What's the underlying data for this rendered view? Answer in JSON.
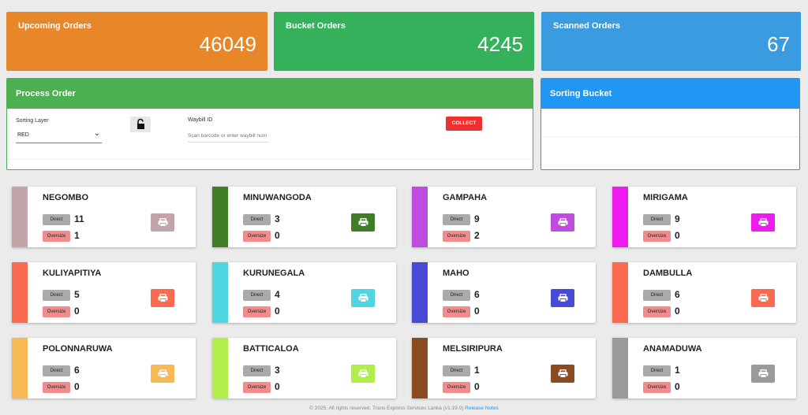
{
  "stats": {
    "upcoming": {
      "label": "Upcoming Orders",
      "value": "46049",
      "color": "#e8862a"
    },
    "bucket": {
      "label": "Bucket Orders",
      "value": "4245",
      "color": "#35b05b"
    },
    "scanned": {
      "label": "Scanned Orders",
      "value": "67",
      "color": "#3a9be0"
    }
  },
  "process_order": {
    "title": "Process Order",
    "sorting_layer_label": "Sorting Layer",
    "sorting_layer_value": "RED",
    "waybill_label": "Waybill ID",
    "waybill_placeholder": "Scan barcode or enter waybill num",
    "collect_label": "COLLECT",
    "header_color": "#4caf50",
    "collect_color": "#ee3030"
  },
  "sorting_bucket": {
    "title": "Sorting Bucket",
    "header_color": "#2196f3"
  },
  "direct_label": "Direct",
  "oversize_label": "Oversize",
  "buckets": [
    {
      "name": "NEGOMBO",
      "direct": "11",
      "oversize": "1",
      "color": "#c3a4a8"
    },
    {
      "name": "MINUWANGODA",
      "direct": "3",
      "oversize": "0",
      "color": "#3f7e25"
    },
    {
      "name": "GAMPAHA",
      "direct": "9",
      "oversize": "2",
      "color": "#c04bdf"
    },
    {
      "name": "MIRIGAMA",
      "direct": "9",
      "oversize": "0",
      "color": "#ee1bee"
    },
    {
      "name": "KULIYAPITIYA",
      "direct": "5",
      "oversize": "0",
      "color": "#f96a50"
    },
    {
      "name": "KURUNEGALA",
      "direct": "4",
      "oversize": "0",
      "color": "#4fd6e0"
    },
    {
      "name": "MAHO",
      "direct": "6",
      "oversize": "0",
      "color": "#4a4ad8"
    },
    {
      "name": "DAMBULLA",
      "direct": "6",
      "oversize": "0",
      "color": "#f96a50"
    },
    {
      "name": "POLONNARUWA",
      "direct": "6",
      "oversize": "0",
      "color": "#f7b955"
    },
    {
      "name": "BATTICALOA",
      "direct": "3",
      "oversize": "0",
      "color": "#b1ee4a"
    },
    {
      "name": "MELSIRIPURA",
      "direct": "1",
      "oversize": "0",
      "color": "#8b4b22"
    },
    {
      "name": "ANAMADUWA",
      "direct": "1",
      "oversize": "0",
      "color": "#9a9a9a"
    }
  ],
  "footer": {
    "text": "© 2025. All rights reserved. Trans Express Services Lanka (v1.19.0)",
    "link": "Release Notes",
    "link_color": "#2196f3"
  }
}
